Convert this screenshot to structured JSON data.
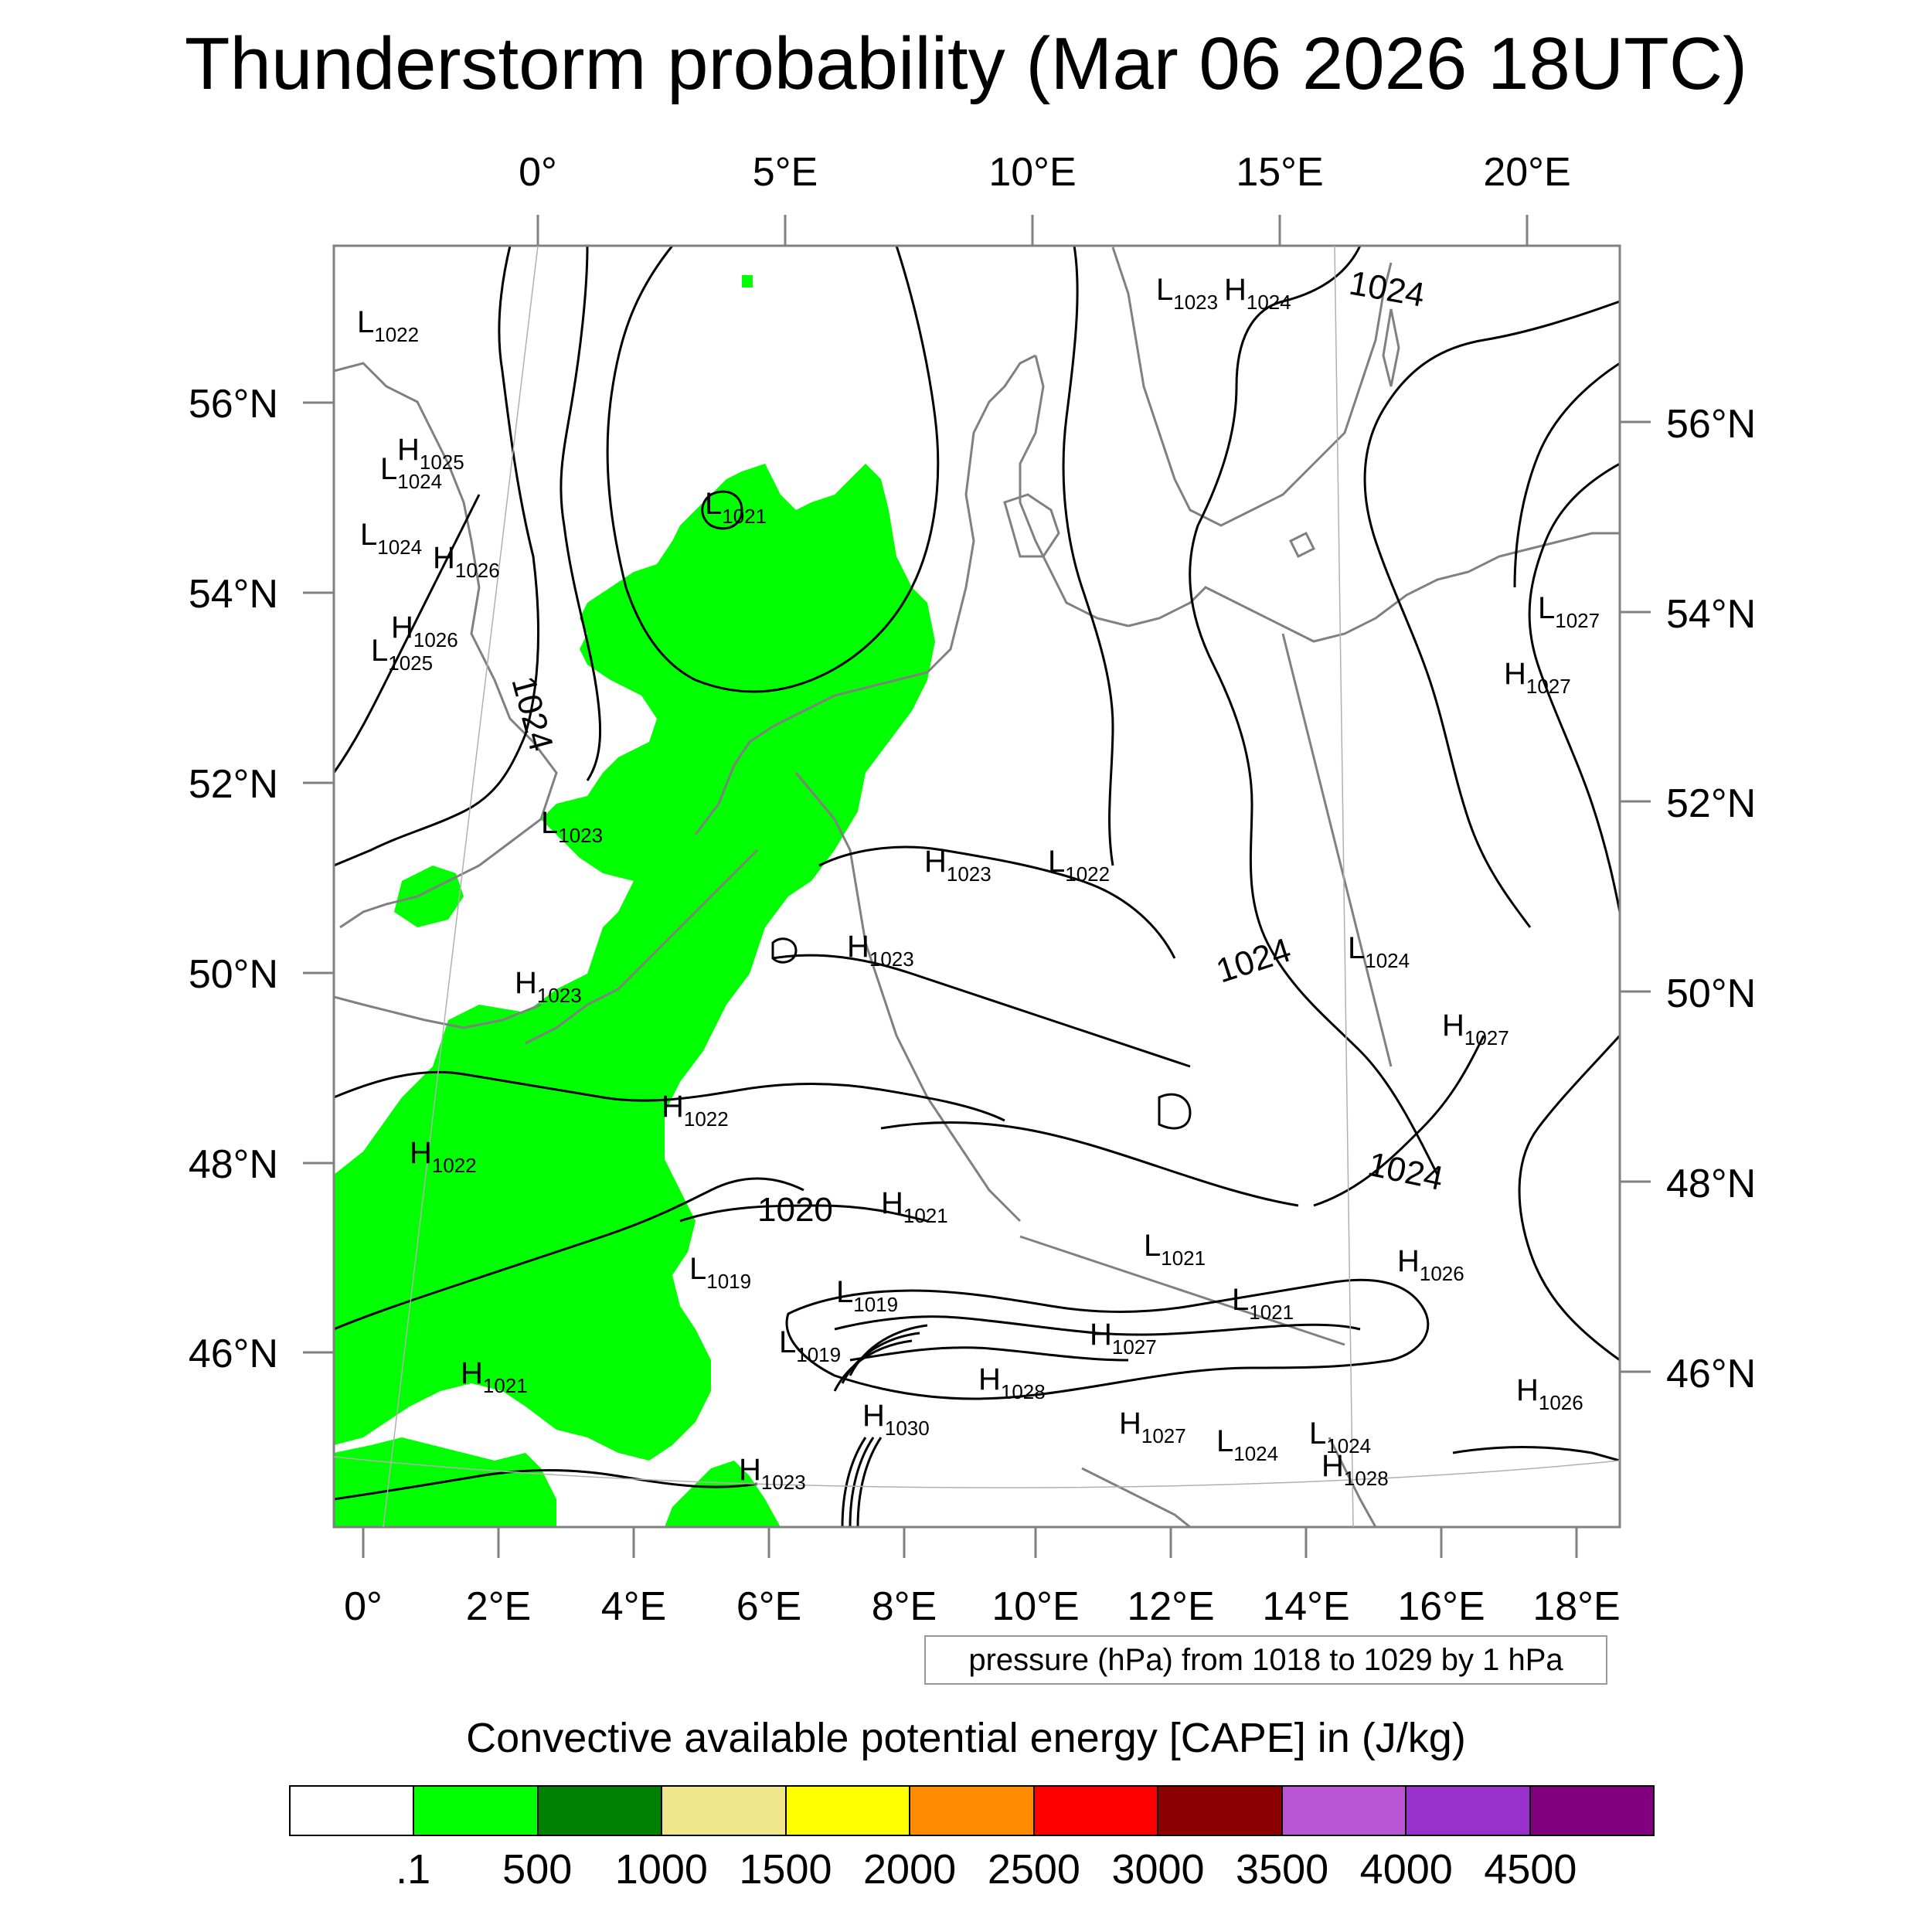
{
  "title": "Thunderstorm probability (Mar 06 2026 18UTC)",
  "top_axis_labels": [
    "0°",
    "5°E",
    "10°E",
    "15°E",
    "20°E"
  ],
  "bottom_axis_labels": [
    "0°",
    "2°E",
    "4°E",
    "6°E",
    "8°E",
    "10°E",
    "12°E",
    "14°E",
    "16°E",
    "18°E"
  ],
  "left_axis_labels": [
    "56°N",
    "54°N",
    "52°N",
    "50°N",
    "48°N",
    "46°N"
  ],
  "right_axis_labels": [
    "56°N",
    "54°N",
    "52°N",
    "50°N",
    "48°N",
    "46°N"
  ],
  "isobar_line_labels": [
    "1024",
    "1024",
    "1024",
    "1024",
    "1020"
  ],
  "pressure_centers": [
    {
      "type": "L",
      "value": "1022"
    },
    {
      "type": "H",
      "value": "1025"
    },
    {
      "type": "L",
      "value": "1024"
    },
    {
      "type": "L",
      "value": "1024"
    },
    {
      "type": "H",
      "value": "1026"
    },
    {
      "type": "H",
      "value": "1026"
    },
    {
      "type": "L",
      "value": "1025"
    },
    {
      "type": "L",
      "value": "1021"
    },
    {
      "type": "L",
      "value": "1023"
    },
    {
      "type": "H",
      "value": "1024"
    },
    {
      "type": "L",
      "value": "1027"
    },
    {
      "type": "H",
      "value": "1027"
    },
    {
      "type": "L",
      "value": "1023"
    },
    {
      "type": "H",
      "value": "1023"
    },
    {
      "type": "L",
      "value": "1022"
    },
    {
      "type": "H",
      "value": "1023"
    },
    {
      "type": "H",
      "value": "1023"
    },
    {
      "type": "L",
      "value": "1024"
    },
    {
      "type": "H",
      "value": "1027"
    },
    {
      "type": "H",
      "value": "1022"
    },
    {
      "type": "H",
      "value": "1022"
    },
    {
      "type": "H",
      "value": "1021"
    },
    {
      "type": "L",
      "value": "1021"
    },
    {
      "type": "H",
      "value": "1026"
    },
    {
      "type": "L",
      "value": "1019"
    },
    {
      "type": "L",
      "value": "1019"
    },
    {
      "type": "L",
      "value": "1021"
    },
    {
      "type": "L",
      "value": "1019"
    },
    {
      "type": "H",
      "value": "1027"
    },
    {
      "type": "H",
      "value": "1021"
    },
    {
      "type": "H",
      "value": "1028"
    },
    {
      "type": "H",
      "value": "1030"
    },
    {
      "type": "H",
      "value": "1027"
    },
    {
      "type": "L",
      "value": "1024"
    },
    {
      "type": "L",
      "value": "1024"
    },
    {
      "type": "H",
      "value": "1028"
    },
    {
      "type": "H",
      "value": "1023"
    },
    {
      "type": "H",
      "value": "1026"
    }
  ],
  "pressure_note": "pressure (hPa) from 1018 to 1029 by 1 hPa",
  "cape_title": "Convective available potential energy [CAPE] in (J/kg)",
  "colorbar": {
    "colors": [
      "#ffffff",
      "#00ff00",
      "#008000",
      "#f0e68c",
      "#ffff00",
      "#ff8c00",
      "#ff0000",
      "#8b0000",
      "#ba55d3",
      "#9932cc",
      "#800080"
    ],
    "labels": [
      ".1",
      "500",
      "1000",
      "1500",
      "2000",
      "2500",
      "3000",
      "3500",
      "4000",
      "4500"
    ]
  },
  "map_colors": {
    "cape_fill": "#00ff00",
    "isobar": "#000000",
    "coastline": "#808080",
    "frame": "#808080"
  }
}
